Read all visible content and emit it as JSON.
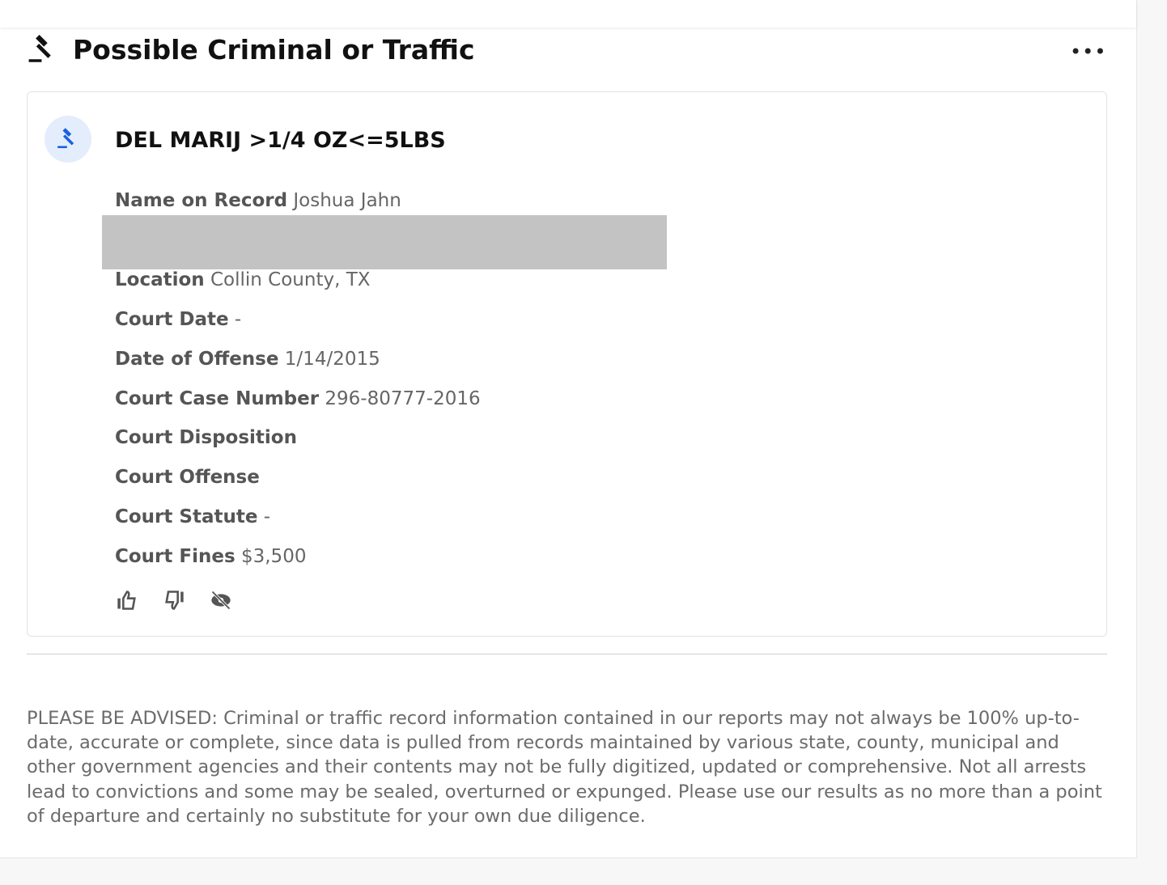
{
  "section": {
    "title": "Possible Criminal or Traffic",
    "icon": "gavel-icon",
    "more_label": "•••"
  },
  "record": {
    "title": "DEL MARIJ >1/4 OZ<=5LBS",
    "accent": "#1a5fe0",
    "fields": [
      {
        "label": "Name on Record",
        "value": "Joshua Jahn"
      },
      {
        "label": "Location",
        "value": "Collin County, TX"
      },
      {
        "label": "Court Date",
        "value": "-"
      },
      {
        "label": "Date of Offense",
        "value": "1/14/2015"
      },
      {
        "label": "Court Case Number",
        "value": "296-80777-2016"
      },
      {
        "label": "Court Disposition",
        "value": ""
      },
      {
        "label": "Court Offense",
        "value": ""
      },
      {
        "label": "Court Statute",
        "value": "-"
      },
      {
        "label": "Court Fines",
        "value": "$3,500"
      }
    ]
  },
  "disclaimer": "PLEASE BE ADVISED: Criminal or traffic record information contained in our reports may not always be 100% up-to-date, accurate or complete, since data is pulled from records maintained by various state, county, municipal and other government agencies and their contents may not be fully digitized, updated or comprehensive. Not all arrests lead to convictions and some may be sealed, overturned or expunged. Please use our results as no more than a point of departure and certainly no substitute for your own due diligence."
}
